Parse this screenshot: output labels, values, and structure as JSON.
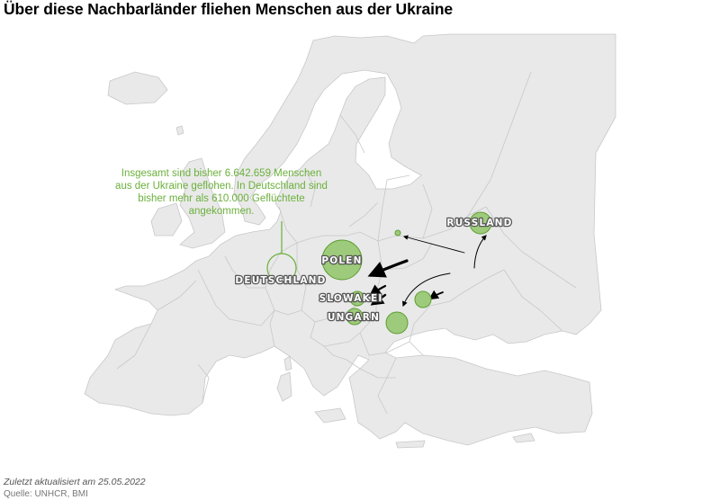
{
  "title": "Über diese Nachbarländer fliehen Menschen aus der Ukraine",
  "annotation": {
    "lines": [
      "Insgesamt sind bisher 6.642.659 Menschen",
      "aus der Ukraine geflohen. In Deutschland sind",
      "bisher mehr als 610.000 Geflüchtete",
      "angekommen."
    ]
  },
  "countries": {
    "russland": "RUSSLAND",
    "polen": "POLEN",
    "deutschland": "DEUTSCHLAND",
    "slowakei": "SLOWAKEI",
    "ungarn": "UNGARN"
  },
  "colors": {
    "land": "#e9e9e9",
    "border": "#c8c8c8",
    "bubble_fill": "#9ecb7b",
    "bubble_stroke": "#5f9e35",
    "accent": "#6bb03b",
    "arrow": "#000000"
  },
  "footer": {
    "updated": "Zuletzt aktualisiert am 25.05.2022",
    "source": "Quelle: UNHCR, BMI"
  }
}
